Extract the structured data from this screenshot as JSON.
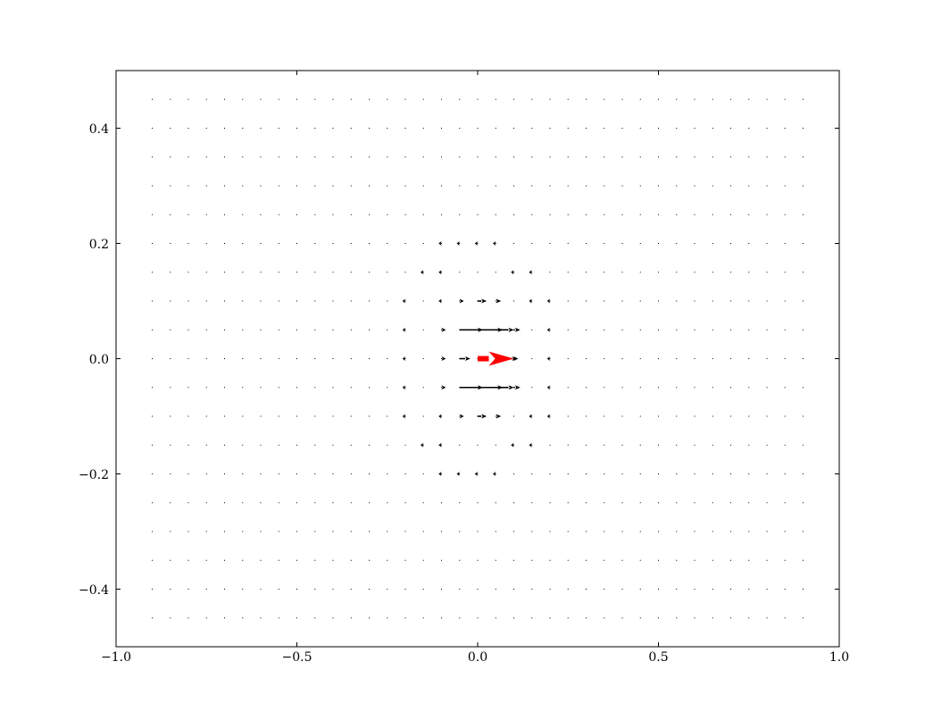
{
  "chart_data": {
    "type": "quiver",
    "title": "",
    "xlabel": "",
    "ylabel": "",
    "xlim": [
      -1.0,
      1.0
    ],
    "ylim": [
      -0.5,
      0.5
    ],
    "grid": false,
    "x_ticks": [
      -1.0,
      -0.5,
      0.0,
      0.5,
      1.0
    ],
    "x_tick_labels": [
      "−1.0",
      "−0.5",
      "0.0",
      "0.5",
      "1.0"
    ],
    "y_ticks": [
      -0.4,
      -0.2,
      0.0,
      0.2,
      0.4
    ],
    "y_tick_labels": [
      "−0.4",
      "−0.2",
      "0.0",
      "0.2",
      "0.4"
    ],
    "grid_x_start": -0.9,
    "grid_x_step": 0.05,
    "grid_x_count": 37,
    "grid_y_values": [
      -0.45,
      -0.4,
      -0.35,
      -0.3,
      -0.25,
      -0.2,
      -0.15,
      -0.1,
      -0.05,
      0.0,
      0.05,
      0.1,
      0.15,
      0.2,
      0.25,
      0.3,
      0.35,
      0.4,
      0.45
    ],
    "vectors": [
      {
        "x": -0.1,
        "y": 0.2,
        "u": -0.008,
        "v": 0
      },
      {
        "x": -0.05,
        "y": 0.2,
        "u": -0.008,
        "v": 0
      },
      {
        "x": 0.0,
        "y": 0.2,
        "u": -0.008,
        "v": 0
      },
      {
        "x": 0.05,
        "y": 0.2,
        "u": -0.008,
        "v": 0
      },
      {
        "x": -0.15,
        "y": 0.15,
        "u": -0.008,
        "v": 0
      },
      {
        "x": -0.1,
        "y": 0.15,
        "u": -0.008,
        "v": 0
      },
      {
        "x": 0.1,
        "y": 0.15,
        "u": -0.008,
        "v": 0
      },
      {
        "x": 0.15,
        "y": 0.15,
        "u": -0.008,
        "v": 0
      },
      {
        "x": -0.2,
        "y": 0.1,
        "u": -0.008,
        "v": 0
      },
      {
        "x": -0.1,
        "y": 0.1,
        "u": -0.008,
        "v": 0
      },
      {
        "x": -0.05,
        "y": 0.1,
        "u": 0.012,
        "v": 0
      },
      {
        "x": 0.0,
        "y": 0.1,
        "u": 0.025,
        "v": 0
      },
      {
        "x": 0.05,
        "y": 0.1,
        "u": 0.015,
        "v": 0
      },
      {
        "x": 0.15,
        "y": 0.1,
        "u": -0.008,
        "v": 0
      },
      {
        "x": 0.2,
        "y": 0.1,
        "u": -0.008,
        "v": 0
      },
      {
        "x": -0.2,
        "y": 0.05,
        "u": -0.008,
        "v": 0
      },
      {
        "x": -0.1,
        "y": 0.05,
        "u": 0.012,
        "v": 0
      },
      {
        "x": -0.05,
        "y": 0.05,
        "u": 0.065,
        "v": 0
      },
      {
        "x": 0.0,
        "y": 0.05,
        "u": 0.07,
        "v": 0
      },
      {
        "x": 0.05,
        "y": 0.05,
        "u": 0.05,
        "v": 0
      },
      {
        "x": 0.1,
        "y": 0.05,
        "u": 0.018,
        "v": 0
      },
      {
        "x": 0.2,
        "y": 0.05,
        "u": -0.008,
        "v": 0
      },
      {
        "x": -0.2,
        "y": 0.0,
        "u": -0.008,
        "v": 0
      },
      {
        "x": -0.1,
        "y": 0.0,
        "u": 0.012,
        "v": 0
      },
      {
        "x": -0.05,
        "y": 0.0,
        "u": 0.03,
        "v": 0
      },
      {
        "x": 0.05,
        "y": 0.0,
        "u": 0.06,
        "v": 0
      },
      {
        "x": 0.1,
        "y": 0.0,
        "u": 0.012,
        "v": 0
      },
      {
        "x": 0.2,
        "y": 0.0,
        "u": -0.008,
        "v": 0
      },
      {
        "x": -0.2,
        "y": -0.05,
        "u": -0.008,
        "v": 0
      },
      {
        "x": -0.1,
        "y": -0.05,
        "u": 0.012,
        "v": 0
      },
      {
        "x": -0.05,
        "y": -0.05,
        "u": 0.065,
        "v": 0
      },
      {
        "x": 0.0,
        "y": -0.05,
        "u": 0.07,
        "v": 0
      },
      {
        "x": 0.05,
        "y": -0.05,
        "u": 0.05,
        "v": 0
      },
      {
        "x": 0.1,
        "y": -0.05,
        "u": 0.018,
        "v": 0
      },
      {
        "x": 0.2,
        "y": -0.05,
        "u": -0.008,
        "v": 0
      },
      {
        "x": -0.2,
        "y": -0.1,
        "u": -0.008,
        "v": 0
      },
      {
        "x": -0.1,
        "y": -0.1,
        "u": -0.008,
        "v": 0
      },
      {
        "x": -0.05,
        "y": -0.1,
        "u": 0.012,
        "v": 0
      },
      {
        "x": 0.0,
        "y": -0.1,
        "u": 0.025,
        "v": 0
      },
      {
        "x": 0.05,
        "y": -0.1,
        "u": 0.015,
        "v": 0
      },
      {
        "x": 0.15,
        "y": -0.1,
        "u": -0.008,
        "v": 0
      },
      {
        "x": 0.2,
        "y": -0.1,
        "u": -0.008,
        "v": 0
      },
      {
        "x": -0.15,
        "y": -0.15,
        "u": -0.008,
        "v": 0
      },
      {
        "x": -0.1,
        "y": -0.15,
        "u": -0.008,
        "v": 0
      },
      {
        "x": 0.1,
        "y": -0.15,
        "u": -0.008,
        "v": 0
      },
      {
        "x": 0.15,
        "y": -0.15,
        "u": -0.008,
        "v": 0
      },
      {
        "x": -0.1,
        "y": -0.2,
        "u": -0.008,
        "v": 0
      },
      {
        "x": -0.05,
        "y": -0.2,
        "u": -0.008,
        "v": 0
      },
      {
        "x": 0.0,
        "y": -0.2,
        "u": -0.008,
        "v": 0
      },
      {
        "x": 0.05,
        "y": -0.2,
        "u": -0.008,
        "v": 0
      }
    ],
    "highlight_vector": {
      "x": 0.0,
      "y": 0.0,
      "u": 0.1,
      "v": 0,
      "color": "#ff0000"
    },
    "colors": {
      "vector": "#000000",
      "highlight": "#ff0000",
      "axes": "#000000",
      "background": "#ffffff"
    }
  }
}
